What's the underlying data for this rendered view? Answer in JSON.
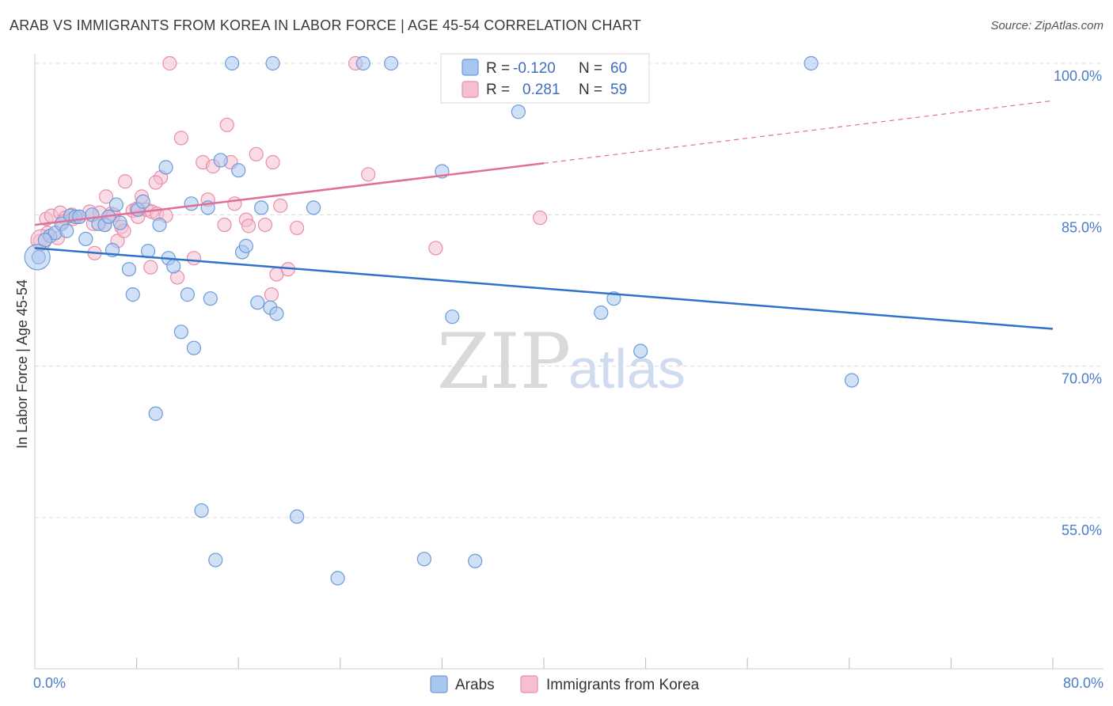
{
  "title": "ARAB VS IMMIGRANTS FROM KOREA IN LABOR FORCE | AGE 45-54 CORRELATION CHART",
  "source": "Source: ZipAtlas.com",
  "watermark": {
    "zip": "ZIP",
    "atlas": "atlas"
  },
  "colors": {
    "arabs_fill": "#a9c6ef",
    "arabs_stroke": "#6c9bd8",
    "arabs_line": "#2f72c9",
    "korea_fill": "#f6bfd0",
    "korea_stroke": "#e88eaa",
    "korea_line": "#e0709a",
    "grid": "#dcdcdc",
    "tick_text": "#4a7cc9"
  },
  "legend": {
    "r_label": "R =",
    "n_label": "N =",
    "series": [
      {
        "r": "-0.120",
        "n": "60"
      },
      {
        "r": "0.281",
        "n": "59"
      }
    ]
  },
  "chart_data": {
    "type": "scatter",
    "title": "ARAB VS IMMIGRANTS FROM KOREA IN LABOR FORCE | AGE 45-54 CORRELATION CHART",
    "xlabel": "",
    "ylabel": "In Labor Force | Age 45-54",
    "xlim": [
      0,
      80
    ],
    "ylim": [
      40,
      102
    ],
    "x_tick_labels": [
      "0.0%",
      "80.0%"
    ],
    "y_ticks": [
      100,
      85,
      70,
      55
    ],
    "y_tick_labels": [
      "100.0%",
      "85.0%",
      "70.0%",
      "55.0%"
    ],
    "grid": true,
    "legend_position": "top-center",
    "series": [
      {
        "name": "Arabs",
        "trend": {
          "x0": 0,
          "y0": 81.7,
          "x1": 80,
          "y1": 73.7
        },
        "points": [
          [
            0.3,
            80.8
          ],
          [
            1.2,
            82.9
          ],
          [
            1.6,
            83.2
          ],
          [
            2.1,
            84.1
          ],
          [
            2.8,
            84.9
          ],
          [
            3.2,
            84.8
          ],
          [
            4.0,
            82.6
          ],
          [
            4.5,
            85.0
          ],
          [
            5.0,
            84.1
          ],
          [
            5.5,
            84.0
          ],
          [
            5.8,
            84.8
          ],
          [
            6.1,
            81.5
          ],
          [
            6.4,
            86.0
          ],
          [
            6.7,
            84.2
          ],
          [
            7.4,
            79.6
          ],
          [
            7.7,
            77.1
          ],
          [
            8.1,
            85.5
          ],
          [
            8.5,
            86.3
          ],
          [
            8.9,
            81.4
          ],
          [
            9.5,
            65.3
          ],
          [
            9.8,
            84.0
          ],
          [
            10.3,
            89.7
          ],
          [
            10.5,
            80.7
          ],
          [
            10.9,
            79.9
          ],
          [
            11.5,
            73.4
          ],
          [
            12.0,
            77.1
          ],
          [
            12.3,
            86.1
          ],
          [
            12.5,
            71.8
          ],
          [
            13.1,
            55.7
          ],
          [
            13.6,
            85.7
          ],
          [
            13.8,
            76.7
          ],
          [
            14.2,
            50.8
          ],
          [
            14.6,
            90.4
          ],
          [
            15.5,
            100.0
          ],
          [
            16.0,
            89.4
          ],
          [
            16.3,
            81.3
          ],
          [
            16.6,
            81.9
          ],
          [
            17.5,
            76.3
          ],
          [
            17.8,
            85.7
          ],
          [
            18.5,
            75.8
          ],
          [
            18.7,
            100.0
          ],
          [
            19.0,
            75.2
          ],
          [
            20.6,
            55.1
          ],
          [
            21.9,
            85.7
          ],
          [
            23.8,
            49.0
          ],
          [
            25.8,
            100.0
          ],
          [
            28.0,
            100.0
          ],
          [
            30.6,
            50.9
          ],
          [
            32.0,
            89.3
          ],
          [
            32.8,
            74.9
          ],
          [
            34.6,
            50.7
          ],
          [
            38.0,
            95.2
          ],
          [
            44.5,
            75.3
          ],
          [
            45.5,
            76.7
          ],
          [
            47.6,
            71.5
          ],
          [
            61.0,
            100.0
          ],
          [
            64.2,
            68.6
          ],
          [
            3.5,
            84.8
          ],
          [
            2.5,
            83.4
          ],
          [
            0.8,
            82.5
          ]
        ]
      },
      {
        "name": "Immigrants from Korea",
        "trend": {
          "x0": 0,
          "y0": 84.0,
          "x1": 40,
          "y1": 90.1,
          "dash_to_x": 80,
          "dash_to_y": 96.3
        },
        "points": [
          [
            0.4,
            82.4
          ],
          [
            0.9,
            84.6
          ],
          [
            1.3,
            84.9
          ],
          [
            1.8,
            82.7
          ],
          [
            2.0,
            85.2
          ],
          [
            2.4,
            84.7
          ],
          [
            2.9,
            85.0
          ],
          [
            3.5,
            84.8
          ],
          [
            4.3,
            85.3
          ],
          [
            4.6,
            84.1
          ],
          [
            4.7,
            81.2
          ],
          [
            5.1,
            85.2
          ],
          [
            5.5,
            84.0
          ],
          [
            5.6,
            86.8
          ],
          [
            6.0,
            85.1
          ],
          [
            6.5,
            82.4
          ],
          [
            6.8,
            83.8
          ],
          [
            7.0,
            83.4
          ],
          [
            7.1,
            88.3
          ],
          [
            7.7,
            85.4
          ],
          [
            8.1,
            84.8
          ],
          [
            8.4,
            86.8
          ],
          [
            8.8,
            85.5
          ],
          [
            9.1,
            79.8
          ],
          [
            9.2,
            85.3
          ],
          [
            9.6,
            85.1
          ],
          [
            9.9,
            88.7
          ],
          [
            10.3,
            84.9
          ],
          [
            10.6,
            100.0
          ],
          [
            11.2,
            78.8
          ],
          [
            11.5,
            92.6
          ],
          [
            12.5,
            80.7
          ],
          [
            13.2,
            90.2
          ],
          [
            13.6,
            86.5
          ],
          [
            14.0,
            89.8
          ],
          [
            14.9,
            84.0
          ],
          [
            15.1,
            93.9
          ],
          [
            15.4,
            90.2
          ],
          [
            15.7,
            86.1
          ],
          [
            16.6,
            84.5
          ],
          [
            16.8,
            83.9
          ],
          [
            17.4,
            91.0
          ],
          [
            18.1,
            84.0
          ],
          [
            18.6,
            77.1
          ],
          [
            18.7,
            90.2
          ],
          [
            19.0,
            79.1
          ],
          [
            19.3,
            85.9
          ],
          [
            19.9,
            79.6
          ],
          [
            20.6,
            83.7
          ],
          [
            25.2,
            100.0
          ],
          [
            26.2,
            89.0
          ],
          [
            31.5,
            81.7
          ],
          [
            39.7,
            84.7
          ],
          [
            1.0,
            83.2
          ],
          [
            2.2,
            84.3
          ],
          [
            3.0,
            84.6
          ],
          [
            6.2,
            85.0
          ],
          [
            8.0,
            85.6
          ],
          [
            9.5,
            88.2
          ]
        ]
      }
    ]
  }
}
